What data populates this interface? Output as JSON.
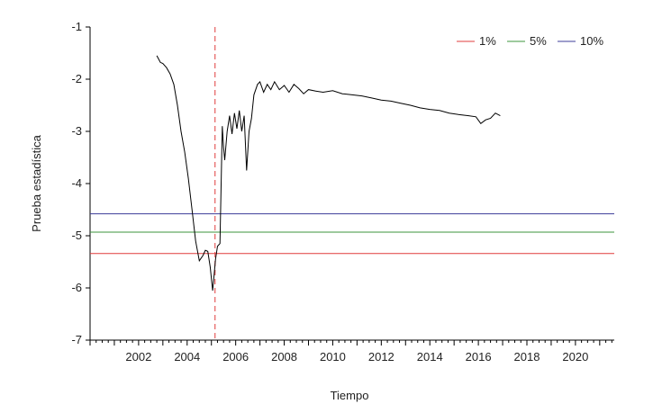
{
  "chart_data": {
    "type": "line",
    "title": "",
    "xlabel": "Tiempo",
    "ylabel": "Prueba estadística",
    "xlim": [
      2000.0,
      2021.6
    ],
    "ylim": [
      -7,
      -1
    ],
    "x_ticks": [
      "2002",
      "2004",
      "2006",
      "2008",
      "2010",
      "2012",
      "2014",
      "2016",
      "2018",
      "2020"
    ],
    "y_ticks": [
      "-1",
      "-2",
      "-3",
      "-4",
      "-5",
      "-6",
      "-7"
    ],
    "grid": false,
    "legend_position": "top-right",
    "critical_values": [
      {
        "name": "1%",
        "value": -5.34,
        "color": "#e03c3c"
      },
      {
        "name": "5%",
        "value": -4.93,
        "color": "#3c963c"
      },
      {
        "name": "10%",
        "value": -4.58,
        "color": "#3c3c9a"
      }
    ],
    "break_date": 2005.15,
    "break_line_color": "#e03c3c",
    "series": [
      {
        "color": "#000000",
        "x": [
          2002.75,
          2002.9,
          2003.0,
          2003.15,
          2003.3,
          2003.45,
          2003.6,
          2003.75,
          2003.9,
          2004.05,
          2004.2,
          2004.35,
          2004.5,
          2004.65,
          2004.75,
          2004.85,
          2004.95,
          2005.05,
          2005.12,
          2005.17,
          2005.25,
          2005.35,
          2005.45,
          2005.5,
          2005.55,
          2005.65,
          2005.75,
          2005.85,
          2005.95,
          2006.05,
          2006.15,
          2006.25,
          2006.35,
          2006.45,
          2006.55,
          2006.65,
          2006.75,
          2006.9,
          2007.0,
          2007.15,
          2007.3,
          2007.45,
          2007.6,
          2007.8,
          2008.0,
          2008.2,
          2008.4,
          2008.6,
          2008.8,
          2009.0,
          2009.3,
          2009.6,
          2010.0,
          2010.4,
          2010.8,
          2011.2,
          2011.6,
          2012.0,
          2012.4,
          2012.8,
          2013.2,
          2013.6,
          2014.0,
          2014.4,
          2014.8,
          2015.2,
          2015.6,
          2015.9,
          2016.1,
          2016.3,
          2016.5,
          2016.7,
          2016.9
        ],
        "y": [
          -1.55,
          -1.68,
          -1.7,
          -1.78,
          -1.9,
          -2.1,
          -2.5,
          -3.0,
          -3.4,
          -3.9,
          -4.5,
          -5.1,
          -5.48,
          -5.38,
          -5.28,
          -5.3,
          -5.6,
          -6.05,
          -5.7,
          -5.45,
          -5.2,
          -5.15,
          -2.9,
          -3.3,
          -3.55,
          -3.0,
          -2.7,
          -3.05,
          -2.65,
          -2.95,
          -2.6,
          -3.0,
          -2.7,
          -3.75,
          -3.0,
          -2.75,
          -2.3,
          -2.1,
          -2.05,
          -2.25,
          -2.1,
          -2.2,
          -2.05,
          -2.2,
          -2.12,
          -2.25,
          -2.1,
          -2.18,
          -2.28,
          -2.2,
          -2.23,
          -2.25,
          -2.22,
          -2.28,
          -2.3,
          -2.32,
          -2.36,
          -2.4,
          -2.42,
          -2.46,
          -2.5,
          -2.55,
          -2.58,
          -2.6,
          -2.65,
          -2.68,
          -2.7,
          -2.72,
          -2.85,
          -2.78,
          -2.75,
          -2.65,
          -2.7
        ]
      }
    ]
  }
}
